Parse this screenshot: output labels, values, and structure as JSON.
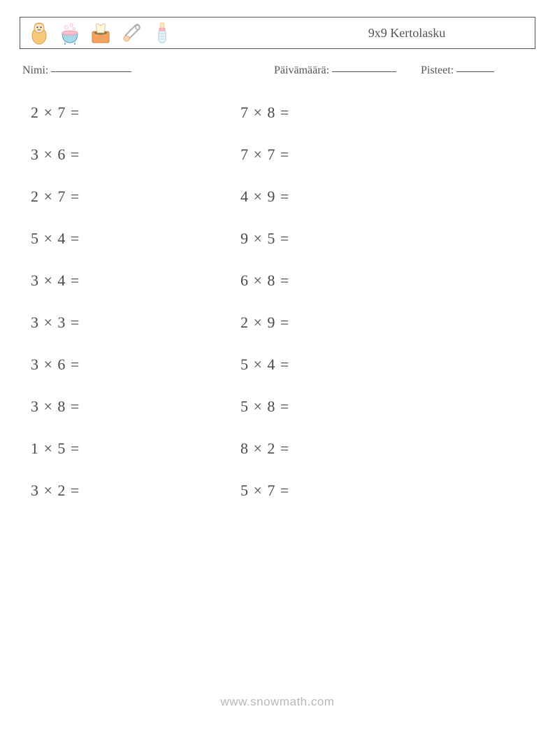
{
  "header": {
    "title": "9x9 Kertolasku",
    "icons": [
      "baby-swaddle-icon",
      "bathtub-icon",
      "tissue-box-icon",
      "safety-pin-icon",
      "baby-bottle-icon"
    ]
  },
  "info": {
    "name_label": "Nimi:",
    "name_blank_width": 115,
    "date_label": "Päivämäärä:",
    "date_blank_width": 92,
    "score_label": "Pisteet:",
    "score_blank_width": 54
  },
  "problems": {
    "col1": [
      {
        "a": 2,
        "b": 7
      },
      {
        "a": 3,
        "b": 6
      },
      {
        "a": 2,
        "b": 7
      },
      {
        "a": 5,
        "b": 4
      },
      {
        "a": 3,
        "b": 4
      },
      {
        "a": 3,
        "b": 3
      },
      {
        "a": 3,
        "b": 6
      },
      {
        "a": 3,
        "b": 8
      },
      {
        "a": 1,
        "b": 5
      },
      {
        "a": 3,
        "b": 2
      }
    ],
    "col2": [
      {
        "a": 7,
        "b": 8
      },
      {
        "a": 7,
        "b": 7
      },
      {
        "a": 4,
        "b": 9
      },
      {
        "a": 9,
        "b": 5
      },
      {
        "a": 6,
        "b": 8
      },
      {
        "a": 2,
        "b": 9
      },
      {
        "a": 5,
        "b": 4
      },
      {
        "a": 5,
        "b": 8
      },
      {
        "a": 8,
        "b": 2
      },
      {
        "a": 5,
        "b": 7
      }
    ]
  },
  "colors": {
    "text": "#4a4a4a",
    "border": "#555555",
    "background": "#ffffff",
    "footer_text": "#b8b8b8",
    "icon_orange": "#f4a460",
    "icon_blue": "#87ceeb",
    "icon_pink": "#ffb6c1",
    "icon_tan": "#d2b48c"
  },
  "footer": {
    "text": "www.snowmath.com"
  }
}
